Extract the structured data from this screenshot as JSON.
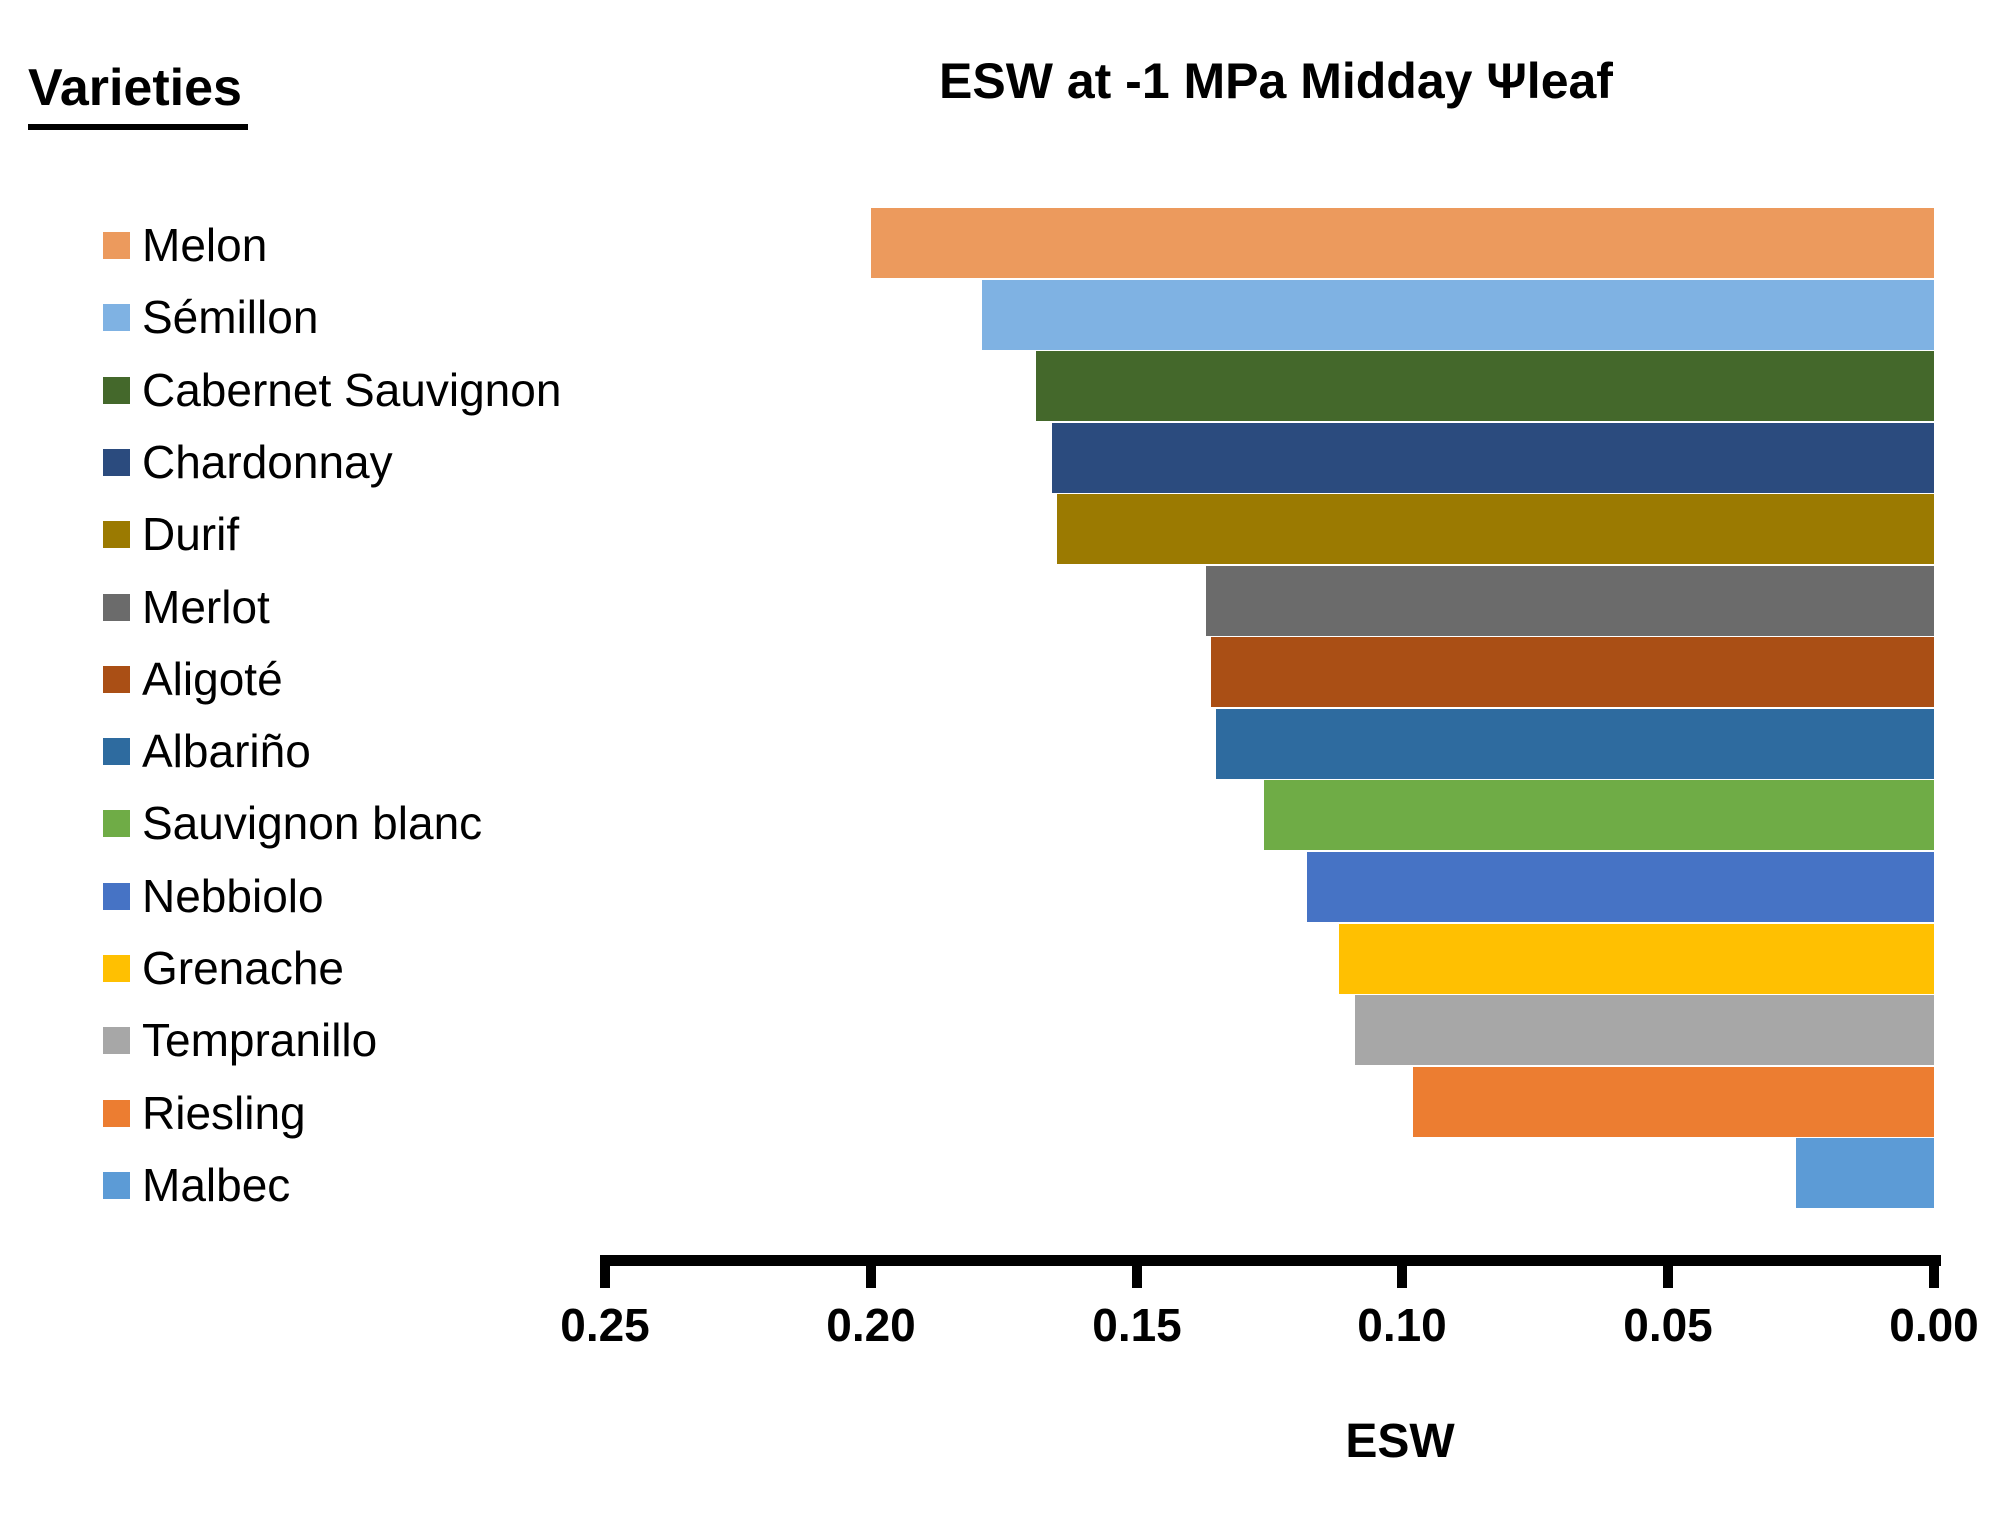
{
  "chart_data": {
    "type": "bar",
    "orientation": "horizontal",
    "title": "ESW at -1 MPa Midday Ψleaf",
    "xlabel": "ESW",
    "legend_title": "Varieties",
    "legend_position": "left",
    "grid": false,
    "axis": {
      "min": 0.0,
      "max": 0.25,
      "reversed": true,
      "tick_interval": 0.05,
      "tick_labels": [
        "0.25",
        "0.20",
        "0.15",
        "0.10",
        "0.05",
        "0.00"
      ]
    },
    "series": [
      {
        "name": "Melon",
        "value": 0.2,
        "color": "#EC9A5D"
      },
      {
        "name": "Sémillon",
        "value": 0.179,
        "color": "#7FB2E3"
      },
      {
        "name": "Cabernet Sauvignon",
        "value": 0.169,
        "color": "#44682B"
      },
      {
        "name": "Chardonnay",
        "value": 0.166,
        "color": "#2B4B7E"
      },
      {
        "name": "Durif",
        "value": 0.165,
        "color": "#9B7A01"
      },
      {
        "name": "Merlot",
        "value": 0.137,
        "color": "#6B6B6B"
      },
      {
        "name": "Aligoté",
        "value": 0.136,
        "color": "#AA4F15"
      },
      {
        "name": "Albariño",
        "value": 0.135,
        "color": "#2E6B9F"
      },
      {
        "name": "Sauvignon blanc",
        "value": 0.126,
        "color": "#6FAC46"
      },
      {
        "name": "Nebbiolo",
        "value": 0.118,
        "color": "#4673C5"
      },
      {
        "name": "Grenache",
        "value": 0.112,
        "color": "#FFC001"
      },
      {
        "name": "Tempranillo",
        "value": 0.109,
        "color": "#A7A7A7"
      },
      {
        "name": "Riesling",
        "value": 0.098,
        "color": "#EC7D31"
      },
      {
        "name": "Malbec",
        "value": 0.026,
        "color": "#5C9BD6"
      }
    ]
  }
}
